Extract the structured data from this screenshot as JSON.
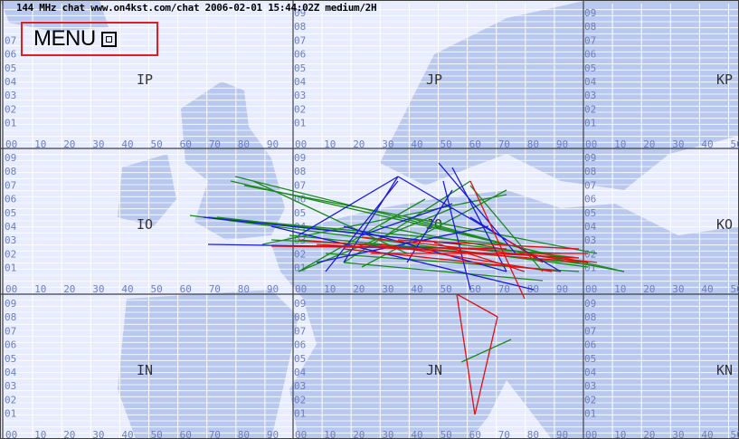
{
  "header": {
    "title": "144 MHz chat www.on4kst.com/chat 2006-02-01 15:44:02Z medium/2H"
  },
  "menu": {
    "label": "MENU",
    "icon": "window-icon"
  },
  "fields": [
    {
      "label": "IP"
    },
    {
      "label": "JP"
    },
    {
      "label": "KP"
    },
    {
      "label": "IO"
    },
    {
      "label": "JO"
    },
    {
      "label": "KO"
    },
    {
      "label": "IN"
    },
    {
      "label": "JN"
    },
    {
      "label": "KN"
    }
  ],
  "grid_labels": {
    "row_digits": [
      "09",
      "08",
      "07",
      "06",
      "05",
      "04",
      "03",
      "02",
      "01"
    ],
    "col_digits": [
      "00",
      "10",
      "20",
      "30",
      "40",
      "50",
      "60",
      "70",
      "80",
      "90"
    ]
  },
  "colors": {
    "sea": "#e8ecff",
    "land": "#b9c8ee",
    "grid_fine": "#ffffff",
    "grid_major": "#404040",
    "link_green": "#1a8a1a",
    "link_blue": "#1a1adc",
    "link_red": "#e01010",
    "menu_border": "#e02020"
  }
}
